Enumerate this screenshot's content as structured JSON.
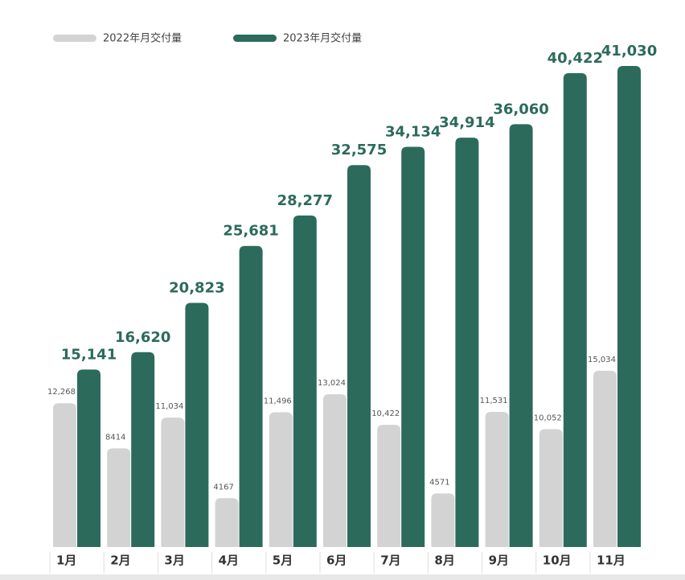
{
  "chart_data": {
    "type": "bar",
    "categories": [
      "1月",
      "2月",
      "3月",
      "4月",
      "5月",
      "6月",
      "7月",
      "8月",
      "9月",
      "10月",
      "11月"
    ],
    "series": [
      {
        "name": "2022年月交付量",
        "color": "#d3d3d3",
        "values": [
          12268,
          8414,
          11034,
          4167,
          11496,
          13024,
          10422,
          4571,
          11531,
          10052,
          15034
        ],
        "value_labels": [
          "12,268",
          "8414",
          "11,034",
          "4167",
          "11,496",
          "13,024",
          "10,422",
          "4571",
          "11,531",
          "10,052",
          "15,034"
        ]
      },
      {
        "name": "2023年月交付量",
        "color": "#2c6b5c",
        "values": [
          15141,
          16620,
          20823,
          25681,
          28277,
          32575,
          34134,
          34914,
          36060,
          40422,
          41030
        ],
        "value_labels": [
          "15,141",
          "16,620",
          "20,823",
          "25,681",
          "28,277",
          "32,575",
          "34,134",
          "34,914",
          "36,060",
          "40,422",
          "41,030"
        ]
      }
    ]
  }
}
